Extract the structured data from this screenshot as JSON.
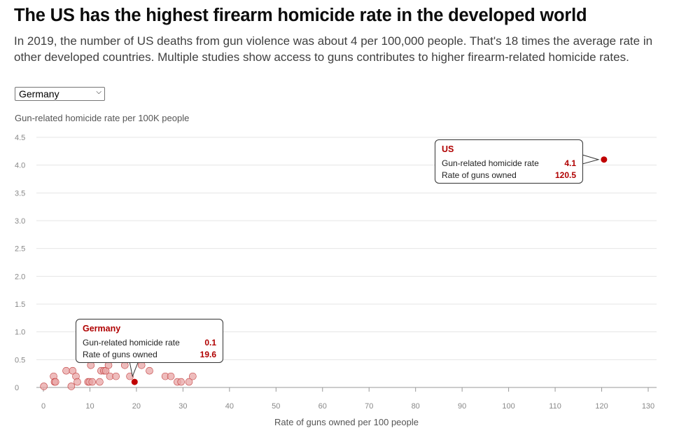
{
  "header": {
    "title": "The US has the highest firearm homicide rate in the developed world",
    "subtitle": "In 2019, the number of US deaths from gun violence was about 4 per 100,000 people. That's 18 times the average rate in other developed countries. Multiple studies show access to guns contributes to higher firearm-related homicide rates."
  },
  "country_select": {
    "selected": "Germany"
  },
  "chart_data": {
    "type": "scatter",
    "ylabel": "Gun-related homicide rate per 100K people",
    "xlabel": "Rate of guns owned per 100 people",
    "xlim": [
      0,
      130
    ],
    "ylim": [
      0,
      4.5
    ],
    "x_ticks": [
      "0",
      "10",
      "20",
      "30",
      "40",
      "50",
      "60",
      "70",
      "80",
      "90",
      "100",
      "110",
      "120",
      "130"
    ],
    "y_ticks": [
      "0",
      "0.5",
      "1.0",
      "1.5",
      "2.0",
      "2.5",
      "3.0",
      "3.5",
      "4.0",
      "4.5"
    ],
    "grid": true,
    "colors": {
      "point": "#e8a5a5",
      "point_stroke": "#c24040",
      "highlight": "#c00000",
      "grid": "#e4e4e4"
    },
    "points": [
      {
        "x": 0.1,
        "y": 0.02
      },
      {
        "x": 2.2,
        "y": 0.2
      },
      {
        "x": 2.4,
        "y": 0.1
      },
      {
        "x": 2.6,
        "y": 0.1
      },
      {
        "x": 4.9,
        "y": 0.3
      },
      {
        "x": 6.0,
        "y": 0.02
      },
      {
        "x": 6.3,
        "y": 0.3
      },
      {
        "x": 7.0,
        "y": 0.2
      },
      {
        "x": 7.3,
        "y": 0.1
      },
      {
        "x": 9.6,
        "y": 0.1
      },
      {
        "x": 9.9,
        "y": 0.1
      },
      {
        "x": 10.2,
        "y": 0.4
      },
      {
        "x": 10.5,
        "y": 0.1
      },
      {
        "x": 12.1,
        "y": 0.1
      },
      {
        "x": 12.4,
        "y": 0.3
      },
      {
        "x": 13.0,
        "y": 0.3
      },
      {
        "x": 13.4,
        "y": 0.3
      },
      {
        "x": 14.0,
        "y": 0.4
      },
      {
        "x": 14.3,
        "y": 0.2
      },
      {
        "x": 15.6,
        "y": 0.2
      },
      {
        "x": 17.5,
        "y": 0.4
      },
      {
        "x": 18.6,
        "y": 0.2
      },
      {
        "x": 21.1,
        "y": 0.4
      },
      {
        "x": 22.8,
        "y": 0.3
      },
      {
        "x": 26.2,
        "y": 0.2
      },
      {
        "x": 27.4,
        "y": 0.2
      },
      {
        "x": 28.8,
        "y": 0.1
      },
      {
        "x": 29.6,
        "y": 0.1
      },
      {
        "x": 31.3,
        "y": 0.1
      },
      {
        "x": 32.1,
        "y": 0.2
      }
    ],
    "highlighted": [
      {
        "name": "Germany",
        "x": 19.6,
        "y": 0.1,
        "rate_label": "Gun-related homicide rate",
        "rate_value": "0.1",
        "guns_label": "Rate of guns owned",
        "guns_value": "19.6"
      },
      {
        "name": "US",
        "x": 120.5,
        "y": 4.1,
        "rate_label": "Gun-related homicide rate",
        "rate_value": "4.1",
        "guns_label": "Rate of guns owned",
        "guns_value": "120.5"
      }
    ]
  }
}
